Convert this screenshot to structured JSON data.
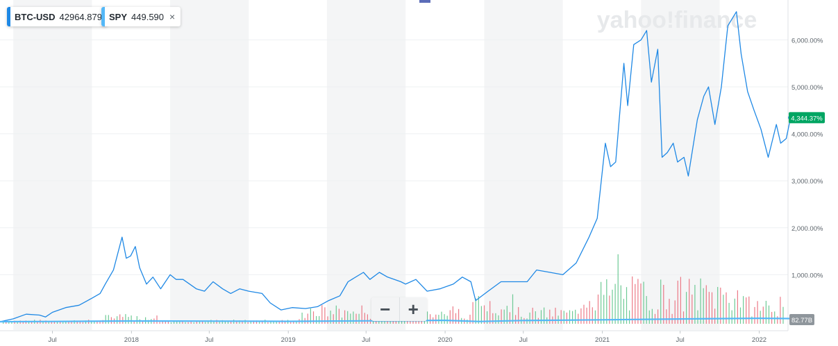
{
  "watermark": "yahoo!finance",
  "legend": [
    {
      "symbol": "BTC-USD",
      "value": "42964.879",
      "color": "#1e88e5"
    },
    {
      "symbol": "SPY",
      "value": "449.590",
      "color": "#54b8f8",
      "close": "×"
    }
  ],
  "zoom": {
    "minus": "−",
    "plus": "+"
  },
  "chart_data": {
    "type": "line",
    "title": "",
    "xlabel": "",
    "ylabel": "",
    "x_range": [
      "2017-03",
      "2022-03"
    ],
    "ylim": [
      -100,
      6800
    ],
    "y_ticks": [
      1000,
      2000,
      3000,
      4000,
      5000,
      6000
    ],
    "y_tick_labels": [
      "1,000.00%",
      "2,000.00%",
      "3,000.00%",
      "4,000.00%",
      "5,000.00%",
      "6,000.00%"
    ],
    "x_ticks": [
      {
        "t": "2017-07",
        "label": "Jul"
      },
      {
        "t": "2018-01",
        "label": "2018"
      },
      {
        "t": "2018-07",
        "label": "Jul"
      },
      {
        "t": "2019-01",
        "label": "2019"
      },
      {
        "t": "2019-07",
        "label": "Jul"
      },
      {
        "t": "2020-01",
        "label": "2020"
      },
      {
        "t": "2020-07",
        "label": "Jul"
      },
      {
        "t": "2021-01",
        "label": "2021"
      },
      {
        "t": "2021-07",
        "label": "Jul"
      },
      {
        "t": "2022-01",
        "label": "2022"
      }
    ],
    "shaded_bands": [
      [
        "2017-04",
        "2017-10"
      ],
      [
        "2018-04",
        "2018-10"
      ],
      [
        "2019-04",
        "2019-10"
      ],
      [
        "2020-04",
        "2020-10"
      ],
      [
        "2021-04",
        "2021-10"
      ]
    ],
    "last_value_label": "4,344.37%",
    "volume_label": "82.77B",
    "series": [
      {
        "name": "BTC-USD",
        "color": "#1e88e5",
        "points": [
          [
            "2017-03-01",
            0
          ],
          [
            "2017-04-01",
            60
          ],
          [
            "2017-05-01",
            160
          ],
          [
            "2017-06-01",
            140
          ],
          [
            "2017-06-15",
            100
          ],
          [
            "2017-07-01",
            200
          ],
          [
            "2017-08-01",
            300
          ],
          [
            "2017-09-01",
            350
          ],
          [
            "2017-10-01",
            500
          ],
          [
            "2017-10-20",
            600
          ],
          [
            "2017-11-01",
            800
          ],
          [
            "2017-11-20",
            1100
          ],
          [
            "2017-12-10",
            1800
          ],
          [
            "2017-12-20",
            1350
          ],
          [
            "2017-12-30",
            1400
          ],
          [
            "2018-01-10",
            1600
          ],
          [
            "2018-01-20",
            1150
          ],
          [
            "2018-02-05",
            800
          ],
          [
            "2018-02-20",
            950
          ],
          [
            "2018-03-10",
            700
          ],
          [
            "2018-04-01",
            1000
          ],
          [
            "2018-04-15",
            900
          ],
          [
            "2018-05-01,",
            900
          ],
          [
            "2018-06-01",
            700
          ],
          [
            "2018-06-20",
            650
          ],
          [
            "2018-07-10",
            850
          ],
          [
            "2018-08-01",
            700
          ],
          [
            "2018-08-20",
            600
          ],
          [
            "2018-09-10",
            700
          ],
          [
            "2018-10-01",
            650
          ],
          [
            "2018-11-01",
            600
          ],
          [
            "2018-11-20",
            400
          ],
          [
            "2018-12-15",
            250
          ],
          [
            "2019-01-10",
            300
          ],
          [
            "2019-02-10",
            280
          ],
          [
            "2019-03-10",
            320
          ],
          [
            "2019-04-05",
            450
          ],
          [
            "2019-05-01",
            550
          ],
          [
            "2019-05-20",
            850
          ],
          [
            "2019-06-25",
            1050
          ],
          [
            "2019-07-10",
            900
          ],
          [
            "2019-08-01",
            1050
          ],
          [
            "2019-08-20",
            950
          ],
          [
            "2019-09-20",
            850
          ],
          [
            "2019-10-01",
            800
          ],
          [
            "2019-10-25",
            900
          ],
          [
            "2019-11-20",
            650
          ],
          [
            "2019-12-20",
            700
          ],
          [
            "2020-01-20",
            800
          ],
          [
            "2020-02-10",
            950
          ],
          [
            "2020-03-01",
            850
          ],
          [
            "2020-03-12",
            450
          ],
          [
            "2020-04-10",
            650
          ],
          [
            "2020-05-10",
            850
          ],
          [
            "2020-06-10",
            850
          ],
          [
            "2020-07-10",
            850
          ],
          [
            "2020-08-01",
            1100
          ],
          [
            "2020-09-01",
            1050
          ],
          [
            "2020-10-01",
            1000
          ],
          [
            "2020-11-01",
            1250
          ],
          [
            "2020-12-01",
            1800
          ],
          [
            "2020-12-20",
            2200
          ],
          [
            "2021-01-08",
            3800
          ],
          [
            "2021-01-20",
            3300
          ],
          [
            "2021-02-01",
            3400
          ],
          [
            "2021-02-20",
            5500
          ],
          [
            "2021-03-01",
            4600
          ],
          [
            "2021-03-15",
            5900
          ],
          [
            "2021-04-01",
            6000
          ],
          [
            "2021-04-14",
            6200
          ],
          [
            "2021-04-25",
            5100
          ],
          [
            "2021-05-10",
            5800
          ],
          [
            "2021-05-20",
            3500
          ],
          [
            "2021-06-01",
            3600
          ],
          [
            "2021-06-15",
            3800
          ],
          [
            "2021-06-25",
            3400
          ],
          [
            "2021-07-10",
            3500
          ],
          [
            "2021-07-20",
            3100
          ],
          [
            "2021-08-10",
            4300
          ],
          [
            "2021-08-25",
            4800
          ],
          [
            "2021-09-05",
            5000
          ],
          [
            "2021-09-20",
            4200
          ],
          [
            "2021-10-05",
            5000
          ],
          [
            "2021-10-20",
            6300
          ],
          [
            "2021-11-09",
            6600
          ],
          [
            "2021-11-20",
            5700
          ],
          [
            "2021-12-05",
            4900
          ],
          [
            "2021-12-20",
            4500
          ],
          [
            "2022-01-05",
            4100
          ],
          [
            "2022-01-22",
            3500
          ],
          [
            "2022-02-10",
            4200
          ],
          [
            "2022-02-20",
            3800
          ],
          [
            "2022-03-05",
            3900
          ],
          [
            "2022-03-15",
            4344
          ]
        ]
      },
      {
        "name": "SPY",
        "color": "#54b8f8",
        "points": [
          [
            "2017-03-01",
            0
          ],
          [
            "2017-07-01",
            5
          ],
          [
            "2018-01-01",
            15
          ],
          [
            "2018-07-01",
            12
          ],
          [
            "2019-01-01",
            8
          ],
          [
            "2019-07-01",
            18
          ],
          [
            "2020-01-01",
            28
          ],
          [
            "2020-03-20",
            5
          ],
          [
            "2020-07-01",
            25
          ],
          [
            "2021-01-01",
            40
          ],
          [
            "2021-07-01",
            58
          ],
          [
            "2022-01-01",
            72
          ],
          [
            "2022-03-15",
            66
          ]
        ]
      }
    ]
  }
}
